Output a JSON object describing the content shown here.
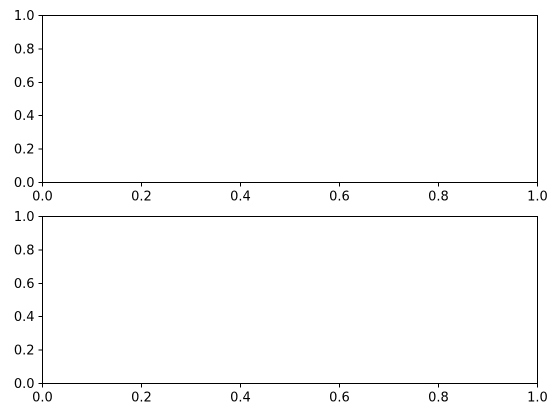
{
  "chart_data": [
    {
      "type": "line",
      "series": [],
      "title": "",
      "xlabel": "",
      "ylabel": "",
      "xlim": [
        0,
        1
      ],
      "ylim": [
        0,
        1
      ],
      "xticks": [
        0.0,
        0.2,
        0.4,
        0.6,
        0.8,
        1.0
      ],
      "yticks": [
        0.0,
        0.2,
        0.4,
        0.6,
        0.8,
        1.0
      ],
      "xtick_labels": [
        "0.0",
        "0.2",
        "0.4",
        "0.6",
        "0.8",
        "1.0"
      ],
      "ytick_labels": [
        "0.0",
        "0.2",
        "0.4",
        "0.6",
        "0.8",
        "1.0"
      ],
      "grid": false,
      "legend": "none"
    },
    {
      "type": "line",
      "series": [],
      "title": "",
      "xlabel": "",
      "ylabel": "",
      "xlim": [
        0,
        1
      ],
      "ylim": [
        0,
        1
      ],
      "xticks": [
        0.0,
        0.2,
        0.4,
        0.6,
        0.8,
        1.0
      ],
      "yticks": [
        0.0,
        0.2,
        0.4,
        0.6,
        0.8,
        1.0
      ],
      "xtick_labels": [
        "0.0",
        "0.2",
        "0.4",
        "0.6",
        "0.8",
        "1.0"
      ],
      "ytick_labels": [
        "0.0",
        "0.2",
        "0.4",
        "0.6",
        "0.8",
        "1.0"
      ],
      "grid": false,
      "legend": "none"
    }
  ]
}
